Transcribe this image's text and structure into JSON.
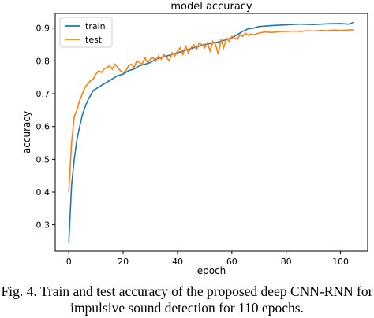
{
  "chart_data": {
    "type": "line",
    "title": "model accuracy",
    "xlabel": "epoch",
    "ylabel": "accuracy",
    "xlim": [
      -5,
      110
    ],
    "ylim": [
      0.22,
      0.945
    ],
    "xticks": [
      0,
      20,
      40,
      60,
      80,
      100
    ],
    "yticks": [
      0.3,
      0.4,
      0.5,
      0.6,
      0.7,
      0.8,
      0.9
    ],
    "legend": "top-left",
    "grid": false,
    "series": [
      {
        "name": "train",
        "color": "#1f77b4",
        "x": [
          0,
          1,
          2,
          3,
          4,
          5,
          6,
          7,
          8,
          9,
          10,
          12,
          14,
          16,
          18,
          20,
          22,
          24,
          26,
          28,
          30,
          32,
          34,
          36,
          38,
          40,
          42,
          44,
          46,
          48,
          50,
          52,
          54,
          56,
          58,
          60,
          62,
          64,
          66,
          68,
          70,
          75,
          80,
          85,
          90,
          95,
          100,
          103,
          105
        ],
        "y": [
          0.245,
          0.42,
          0.5,
          0.56,
          0.6,
          0.635,
          0.66,
          0.68,
          0.695,
          0.71,
          0.715,
          0.725,
          0.735,
          0.745,
          0.755,
          0.76,
          0.77,
          0.775,
          0.785,
          0.79,
          0.795,
          0.805,
          0.81,
          0.815,
          0.82,
          0.825,
          0.83,
          0.835,
          0.84,
          0.845,
          0.85,
          0.853,
          0.856,
          0.86,
          0.865,
          0.87,
          0.88,
          0.89,
          0.898,
          0.9,
          0.905,
          0.908,
          0.91,
          0.912,
          0.911,
          0.913,
          0.914,
          0.912,
          0.918
        ]
      },
      {
        "name": "test",
        "color": "#ff7f0e",
        "x": [
          0,
          1,
          2,
          3,
          4,
          5,
          6,
          7,
          8,
          9,
          10,
          11,
          12,
          13,
          14,
          15,
          16,
          17,
          18,
          19,
          20,
          21,
          22,
          23,
          24,
          25,
          26,
          27,
          28,
          29,
          30,
          31,
          32,
          33,
          34,
          35,
          36,
          37,
          38,
          39,
          40,
          41,
          42,
          43,
          44,
          45,
          46,
          47,
          48,
          49,
          50,
          51,
          52,
          53,
          54,
          55,
          56,
          57,
          58,
          59,
          60,
          61,
          62,
          63,
          64,
          65,
          66,
          67,
          68,
          70,
          72,
          75,
          78,
          80,
          83,
          85,
          88,
          90,
          93,
          95,
          98,
          100,
          103,
          105
        ],
        "y": [
          0.4,
          0.55,
          0.63,
          0.65,
          0.68,
          0.7,
          0.72,
          0.73,
          0.74,
          0.745,
          0.76,
          0.77,
          0.765,
          0.775,
          0.78,
          0.785,
          0.775,
          0.79,
          0.78,
          0.77,
          0.765,
          0.77,
          0.785,
          0.79,
          0.78,
          0.8,
          0.795,
          0.79,
          0.81,
          0.795,
          0.805,
          0.81,
          0.8,
          0.815,
          0.805,
          0.82,
          0.81,
          0.8,
          0.825,
          0.815,
          0.83,
          0.84,
          0.82,
          0.845,
          0.825,
          0.84,
          0.85,
          0.835,
          0.855,
          0.85,
          0.84,
          0.855,
          0.83,
          0.86,
          0.85,
          0.82,
          0.865,
          0.84,
          0.87,
          0.86,
          0.875,
          0.87,
          0.865,
          0.88,
          0.875,
          0.885,
          0.878,
          0.882,
          0.88,
          0.885,
          0.888,
          0.887,
          0.89,
          0.89,
          0.891,
          0.89,
          0.892,
          0.891,
          0.893,
          0.892,
          0.894,
          0.893,
          0.894,
          0.895
        ]
      }
    ]
  },
  "caption": {
    "line1": "Fig. 4.   Train and test accuracy of the proposed deep CNN-RNN for",
    "line2": "impulsive sound detection for 110 epochs."
  }
}
